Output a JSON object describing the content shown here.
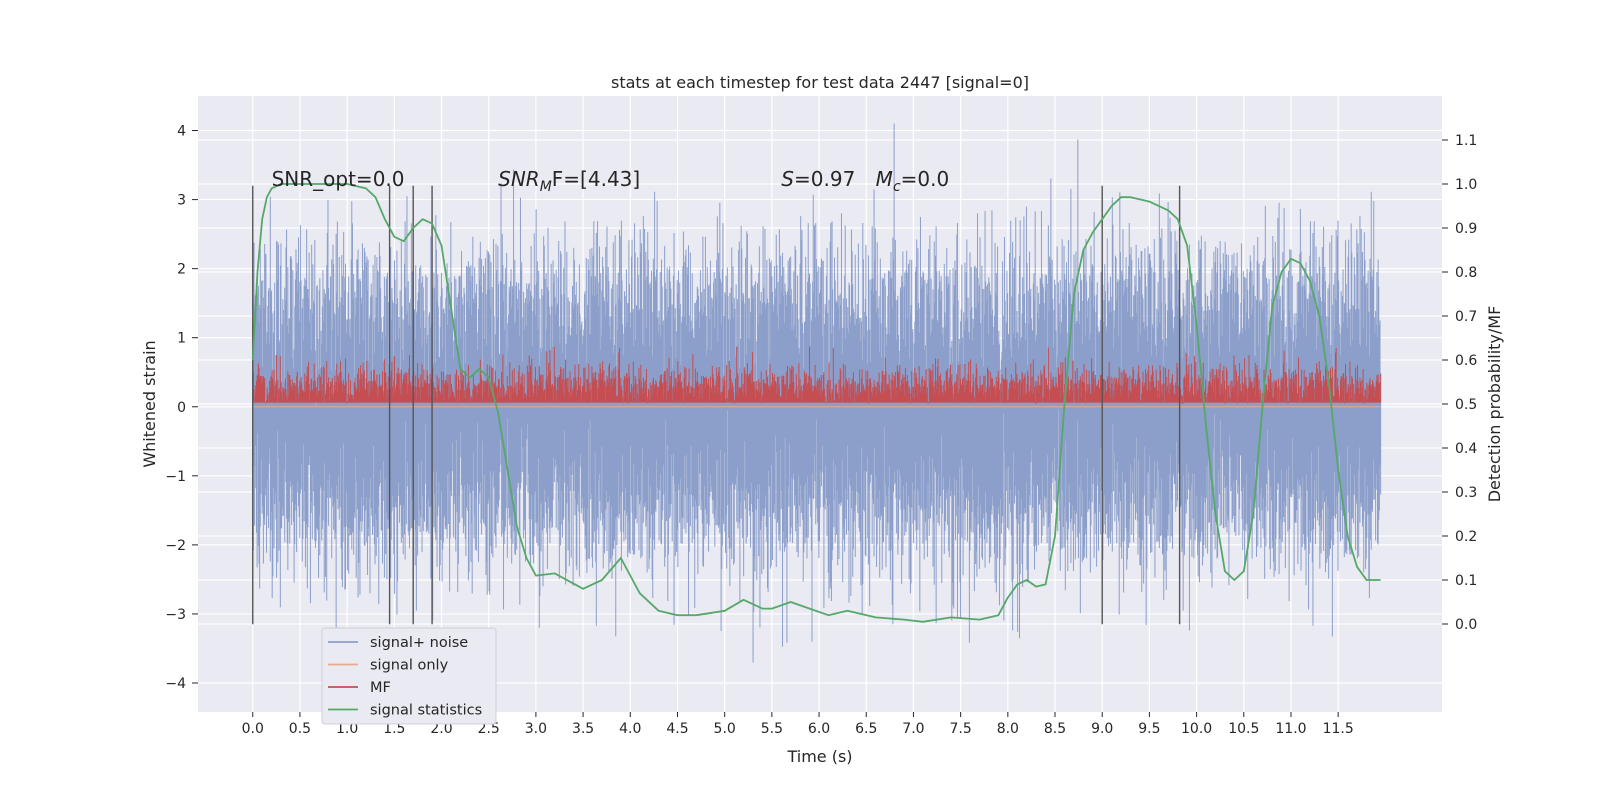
{
  "chart_data": {
    "type": "line",
    "title": "stats at each timestep for test data 2447 [signal=0]",
    "xlabel": "Time (s)",
    "ylabel_left": "Whitened strain",
    "ylabel_right": "Detection probability/MF",
    "xlim": [
      -0.58,
      12.6
    ],
    "ylim_left": [
      -4.42,
      4.5
    ],
    "ylim_right": [
      -0.2,
      1.2
    ],
    "x_ticks": [
      0.0,
      0.5,
      1.0,
      1.5,
      2.0,
      2.5,
      3.0,
      3.5,
      4.0,
      4.5,
      5.0,
      5.5,
      6.0,
      6.5,
      7.0,
      7.5,
      8.0,
      8.5,
      9.0,
      9.5,
      10.0,
      10.5,
      11.0,
      11.5
    ],
    "x_tick_labels": [
      "0.0",
      "0.5",
      "1.0",
      "1.5",
      "2.0",
      "2.5",
      "3.0",
      "3.5",
      "4.0",
      "4.5",
      "5.0",
      "5.5",
      "6.0",
      "6.5",
      "7.0",
      "7.5",
      "8.0",
      "8.5",
      "9.0",
      "9.5",
      "10.0",
      "10.5",
      "11.0",
      "11.5"
    ],
    "y_left_ticks": [
      4,
      3,
      2,
      1,
      0,
      -1,
      -2,
      -3,
      -4
    ],
    "y_left_tick_labels": [
      "4",
      "3",
      "2",
      "1",
      "0",
      "−1",
      "−2",
      "−3",
      "−4"
    ],
    "y_right_ticks": [
      1.1,
      1.0,
      0.9,
      0.8,
      0.7,
      0.6,
      0.5,
      0.4,
      0.3,
      0.2,
      0.1,
      0.0
    ],
    "y_right_tick_labels": [
      "1.1",
      "1.0",
      "0.9",
      "0.8",
      "0.7",
      "0.6",
      "0.5",
      "0.4",
      "0.3",
      "0.2",
      "0.1",
      "0.0"
    ],
    "annotations": [
      {
        "text": "SNR_opt=0.0",
        "x": 0.2,
        "y": 3.3
      },
      {
        "text": "SNR",
        "sub": "M",
        "tail": "F=[4.43]",
        "x": 2.6,
        "y": 3.3
      },
      {
        "text": "S",
        "tail": "=0.97",
        "x": 5.6,
        "y": 3.3
      },
      {
        "text": "M",
        "sub": "c",
        "tail": "=0.0",
        "x": 6.6,
        "y": 3.3
      }
    ],
    "vertical_lines_x": [
      0.0,
      1.45,
      1.7,
      1.9,
      9.0,
      9.82
    ],
    "vertical_lines_yrange": [
      -3.15,
      3.2
    ],
    "legend": {
      "placement": "lower-left",
      "entries": [
        {
          "label": "signal+ noise",
          "color": "#8c9fca"
        },
        {
          "label": "signal only",
          "color": "#e8a98e"
        },
        {
          "label": "MF",
          "color": "#c44e52"
        },
        {
          "label": "signal statistics",
          "color": "#55a868"
        }
      ]
    },
    "series": [
      {
        "name": "signal+ noise",
        "color": "#8c9fca",
        "axis": "left",
        "x_range": [
          0.0,
          11.95
        ],
        "envelope": [
          -3.0,
          3.0
        ],
        "description_values": "random noise samples"
      },
      {
        "name": "signal only",
        "color": "#e8a98e",
        "axis": "left",
        "x_range": [
          0.0,
          11.95
        ],
        "values_constant": 0.0
      },
      {
        "name": "MF",
        "color": "#c44e52",
        "axis": "right",
        "x_range": [
          0.0,
          11.95
        ],
        "baseline": 0.5,
        "envelope": [
          0.5,
          0.6
        ]
      },
      {
        "name": "signal statistics",
        "color": "#55a868",
        "axis": "right",
        "x": [
          0.0,
          0.05,
          0.1,
          0.15,
          0.2,
          0.3,
          0.4,
          0.6,
          0.8,
          1.0,
          1.2,
          1.3,
          1.4,
          1.5,
          1.6,
          1.7,
          1.8,
          1.9,
          2.0,
          2.1,
          2.2,
          2.3,
          2.4,
          2.5,
          2.6,
          2.7,
          2.8,
          2.9,
          3.0,
          3.2,
          3.5,
          3.7,
          3.9,
          4.1,
          4.3,
          4.5,
          4.7,
          5.0,
          5.2,
          5.4,
          5.5,
          5.7,
          5.9,
          6.1,
          6.3,
          6.6,
          6.9,
          7.1,
          7.4,
          7.7,
          7.9,
          8.0,
          8.1,
          8.2,
          8.3,
          8.4,
          8.5,
          8.6,
          8.7,
          8.8,
          8.9,
          9.0,
          9.1,
          9.2,
          9.3,
          9.5,
          9.7,
          9.8,
          9.9,
          10.0,
          10.1,
          10.2,
          10.3,
          10.4,
          10.5,
          10.6,
          10.7,
          10.8,
          10.9,
          11.0,
          11.1,
          11.2,
          11.3,
          11.4,
          11.5,
          11.6,
          11.7,
          11.8,
          11.95
        ],
        "values": [
          0.6,
          0.8,
          0.92,
          0.97,
          0.99,
          1.0,
          1.0,
          1.0,
          1.0,
          1.0,
          0.99,
          0.97,
          0.92,
          0.88,
          0.87,
          0.9,
          0.92,
          0.91,
          0.86,
          0.72,
          0.58,
          0.56,
          0.58,
          0.56,
          0.48,
          0.35,
          0.22,
          0.15,
          0.11,
          0.115,
          0.08,
          0.1,
          0.15,
          0.07,
          0.03,
          0.02,
          0.02,
          0.03,
          0.055,
          0.035,
          0.035,
          0.05,
          0.035,
          0.02,
          0.03,
          0.015,
          0.01,
          0.005,
          0.015,
          0.01,
          0.02,
          0.06,
          0.09,
          0.1,
          0.085,
          0.09,
          0.2,
          0.5,
          0.75,
          0.85,
          0.89,
          0.92,
          0.95,
          0.97,
          0.97,
          0.96,
          0.94,
          0.92,
          0.86,
          0.68,
          0.45,
          0.25,
          0.12,
          0.1,
          0.12,
          0.25,
          0.5,
          0.72,
          0.8,
          0.83,
          0.82,
          0.78,
          0.7,
          0.55,
          0.35,
          0.2,
          0.13,
          0.1,
          0.1
        ]
      }
    ]
  }
}
